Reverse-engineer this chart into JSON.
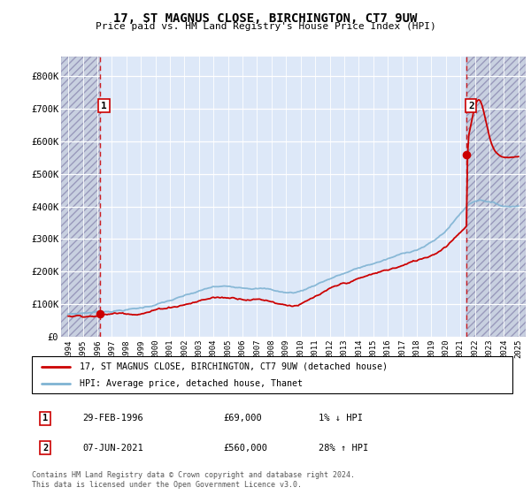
{
  "title": "17, ST MAGNUS CLOSE, BIRCHINGTON, CT7 9UW",
  "subtitle": "Price paid vs. HM Land Registry's House Price Index (HPI)",
  "legend_line1": "17, ST MAGNUS CLOSE, BIRCHINGTON, CT7 9UW (detached house)",
  "legend_line2": "HPI: Average price, detached house, Thanet",
  "sale1_date": "29-FEB-1996",
  "sale1_price": "£69,000",
  "sale1_hpi": "1% ↓ HPI",
  "sale2_date": "07-JUN-2021",
  "sale2_price": "£560,000",
  "sale2_hpi": "28% ↑ HPI",
  "footer": "Contains HM Land Registry data © Crown copyright and database right 2024.\nThis data is licensed under the Open Government Licence v3.0.",
  "sale1_x": 1996.16,
  "sale1_y": 69000,
  "sale2_x": 2021.44,
  "sale2_y": 560000,
  "ylim": [
    0,
    860000
  ],
  "xlim": [
    1993.5,
    2025.5
  ],
  "red_color": "#cc0000",
  "blue_color": "#7fb3d3",
  "bg_color": "#dde8f8",
  "hatch_bg": "#c8d0e0",
  "grid_color": "#ffffff",
  "yticks": [
    0,
    100000,
    200000,
    300000,
    400000,
    500000,
    600000,
    700000,
    800000
  ],
  "ytick_labels": [
    "£0",
    "£100K",
    "£200K",
    "£300K",
    "£400K",
    "£500K",
    "£600K",
    "£700K",
    "£800K"
  ],
  "xticks": [
    1994,
    1995,
    1996,
    1997,
    1998,
    1999,
    2000,
    2001,
    2002,
    2003,
    2004,
    2005,
    2006,
    2007,
    2008,
    2009,
    2010,
    2011,
    2012,
    2013,
    2014,
    2015,
    2016,
    2017,
    2018,
    2019,
    2020,
    2021,
    2022,
    2023,
    2024,
    2025
  ]
}
